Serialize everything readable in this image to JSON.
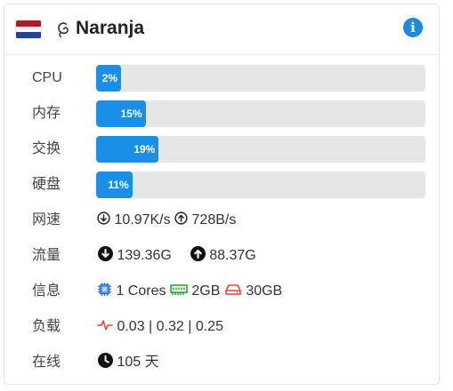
{
  "server": {
    "name": "Naranja"
  },
  "icons": {
    "flag": "netherlands-flag-icon",
    "os": "debian-icon",
    "info": "info-icon",
    "download": "arrow-down-circle-icon",
    "upload": "arrow-up-circle-icon",
    "cpu": "cpu-chip-icon",
    "memory": "memory-module-icon",
    "disk": "hard-drive-icon",
    "load": "pulse-icon",
    "uptime": "clock-icon"
  },
  "colors": {
    "accent": "#1a8fea",
    "track": "#e6e6e6",
    "info": "#1e88e5",
    "memory": "#2e9e2e",
    "disk_load": "#e0443a"
  },
  "metrics": [
    {
      "label": "CPU",
      "percent": 2,
      "text": "2%"
    },
    {
      "label": "内存",
      "percent": 15,
      "text": "15%"
    },
    {
      "label": "交换",
      "percent": 19,
      "text": "19%"
    },
    {
      "label": "硬盘",
      "percent": 11,
      "text": "11%"
    }
  ],
  "network": {
    "label": "网速",
    "down": "10.97K/s",
    "up": "728B/s"
  },
  "traffic": {
    "label": "流量",
    "down": "139.36G",
    "up": "88.37G"
  },
  "info": {
    "label": "信息",
    "cores": "1 Cores",
    "memory": "2GB",
    "disk": "30GB"
  },
  "load": {
    "label": "负载",
    "value": "0.03 | 0.32 | 0.25"
  },
  "uptime": {
    "label": "在线",
    "value": "105 天"
  }
}
